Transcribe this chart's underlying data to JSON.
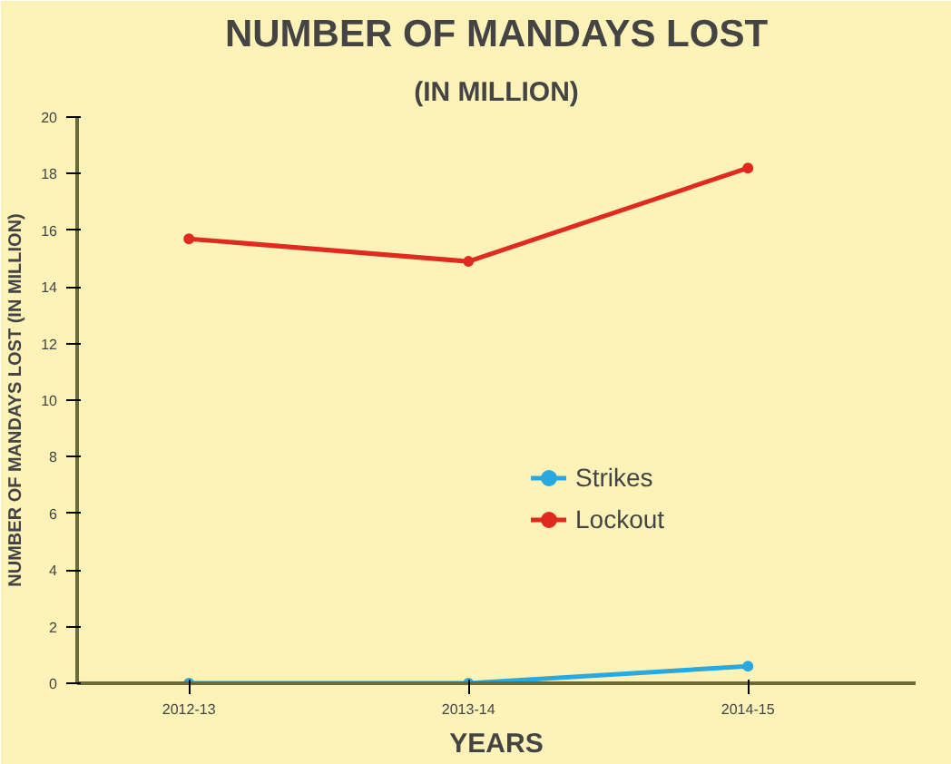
{
  "chart_data": {
    "type": "line",
    "title": "NUMBER OF MANDAYS LOST",
    "subtitle": "(IN MILLION)",
    "xlabel": "YEARS",
    "ylabel": "NUMBER OF MANDAYS LOST (IN MILLION)",
    "categories": [
      "2012-13",
      "2013-14",
      "2014-15"
    ],
    "series": [
      {
        "name": "Strikes",
        "color": "#29a9e0",
        "values": [
          0,
          0,
          0.6
        ]
      },
      {
        "name": "Lockout",
        "color": "#e02a1f",
        "values": [
          15.7,
          14.9,
          18.2
        ]
      }
    ],
    "ylim": [
      0,
      20
    ],
    "yticks": [
      0,
      2,
      4,
      6,
      8,
      10,
      12,
      14,
      16,
      18,
      20
    ],
    "grid": false,
    "legend": "right",
    "marker": "circle",
    "line_style": "solid"
  }
}
